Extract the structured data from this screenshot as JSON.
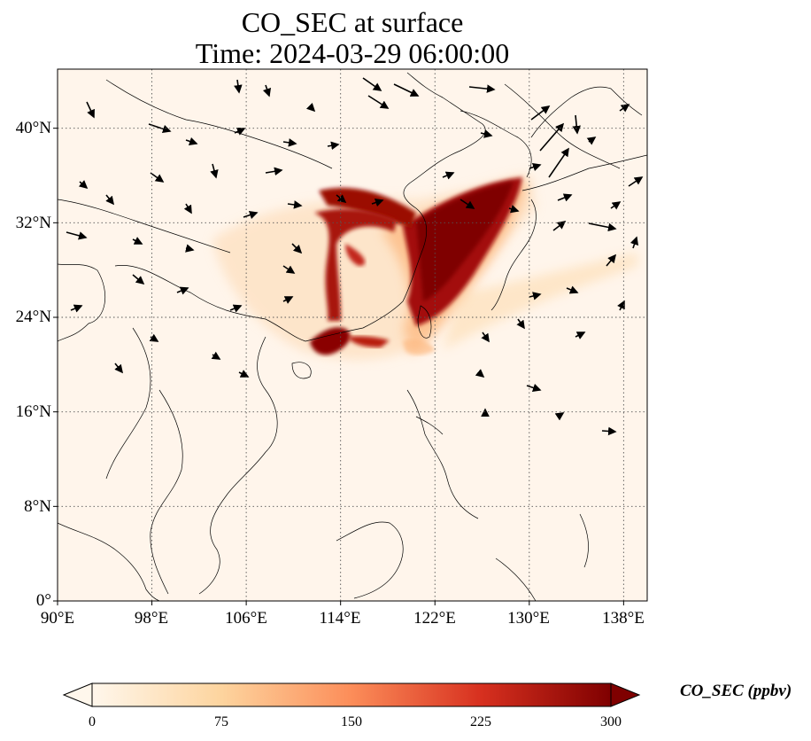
{
  "title": {
    "line1": "CO_SEC at surface",
    "line2": "Time: 2024-03-29 06:00:00"
  },
  "map": {
    "projection": "PlateCarree",
    "lon_range": [
      90,
      140
    ],
    "lat_range": [
      0,
      45
    ],
    "lat_ticks": [
      {
        "value": 0,
        "label": "0°"
      },
      {
        "value": 8,
        "label": "8°N"
      },
      {
        "value": 16,
        "label": "16°N"
      },
      {
        "value": 24,
        "label": "24°N"
      },
      {
        "value": 32,
        "label": "32°N"
      },
      {
        "value": 40,
        "label": "40°N"
      }
    ],
    "lon_ticks": [
      {
        "value": 90,
        "label": "90°E"
      },
      {
        "value": 98,
        "label": "98°E"
      },
      {
        "value": 106,
        "label": "106°E"
      },
      {
        "value": 114,
        "label": "114°E"
      },
      {
        "value": 122,
        "label": "122°E"
      },
      {
        "value": 130,
        "label": "130°E"
      },
      {
        "value": 138,
        "label": "138°E"
      }
    ],
    "gridlines": "dotted",
    "variable": "CO_SEC",
    "background_color": "#fff5eb",
    "plume_color": "#7f0000"
  },
  "colorbar": {
    "label": "CO_SEC (ppbv)",
    "min": 0,
    "max": 300,
    "extend": "both",
    "ticks": [
      "0",
      "75",
      "150",
      "225",
      "300"
    ],
    "colormap": "OrRd",
    "colors": [
      "#fff7ec",
      "#fdd49e",
      "#fc8d59",
      "#d7301f",
      "#7f0000"
    ]
  }
}
